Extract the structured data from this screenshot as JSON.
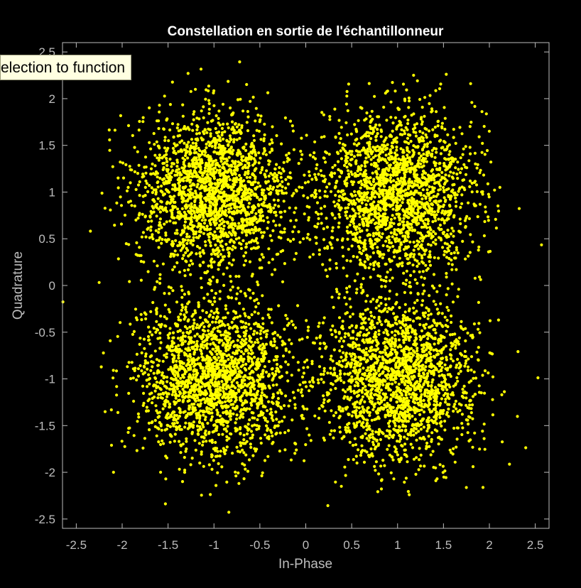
{
  "chart_data": {
    "type": "scatter",
    "title": "Constellation en sortie de l'échantillonneur",
    "xlabel": "In-Phase",
    "ylabel": "Quadrature",
    "xlim": [
      -2.65,
      2.65
    ],
    "ylim": [
      -2.6,
      2.6
    ],
    "x_ticks": [
      -2.5,
      -2,
      -1.5,
      -1,
      -0.5,
      0,
      0.5,
      1,
      1.5,
      2,
      2.5
    ],
    "x_tick_labels": [
      "-2.5",
      "-2",
      "-1.5",
      "-1",
      "-0.5",
      "0",
      "0.5",
      "1",
      "1.5",
      "2",
      "2.5"
    ],
    "y_ticks": [
      2.5,
      2,
      1.5,
      1,
      0.5,
      0,
      -0.5,
      -1,
      -1.5,
      -2,
      -2.5
    ],
    "y_tick_labels": [
      "2.5",
      "2",
      "1.5",
      "1",
      "0.5",
      "0",
      "-0.5",
      "-1",
      "-1.5",
      "-2",
      "-2.5"
    ],
    "grid": false,
    "series": [
      {
        "color": "#ffff00",
        "clusters": [
          {
            "center": [
              -1,
              1
            ],
            "spread": 0.42,
            "points": 2000
          },
          {
            "center": [
              1,
              1
            ],
            "spread": 0.42,
            "points": 2000
          },
          {
            "center": [
              -1,
              -1
            ],
            "spread": 0.42,
            "points": 2000
          },
          {
            "center": [
              1,
              -1
            ],
            "spread": 0.42,
            "points": 2000
          }
        ]
      }
    ],
    "colors": {
      "background": "#000000",
      "axes": "#bdbdbd",
      "marker": "#ffff00"
    }
  },
  "tooltip": {
    "text": "election to function"
  }
}
